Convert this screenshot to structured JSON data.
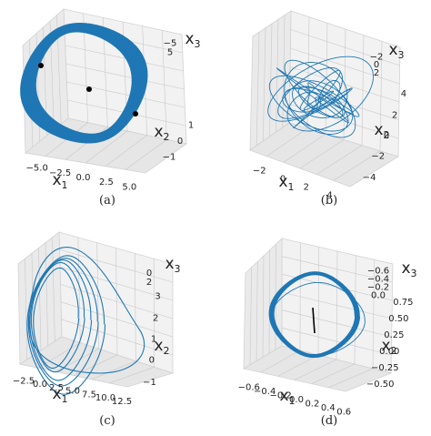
{
  "figure": {
    "panel_captions": [
      "(a)",
      "(b)",
      "(c)",
      "(d)"
    ]
  },
  "colors": {
    "trajectory": "#1f77b4",
    "pane": "#f2f2f2",
    "pane_edge": "#d2d2d2",
    "grid": "#c8c8c8",
    "point": "#000000"
  },
  "chart_data": [
    {
      "type": "scatter",
      "subtype": "3d-trajectory",
      "caption": "(a)",
      "axes": {
        "x1": {
          "label": "x",
          "subscript": "1",
          "ticks": [
            "−5.0",
            "−2.5",
            "0.0",
            "2.5",
            "5.0"
          ],
          "range": [
            -6,
            7
          ]
        },
        "x2": {
          "label": "x",
          "subscript": "2",
          "ticks": [
            "−1",
            "0",
            "1"
          ],
          "range": [
            -1.5,
            1.5
          ]
        },
        "x3": {
          "label": "x",
          "subscript": "3",
          "ticks": [
            "−5",
            "5"
          ],
          "range": [
            -6,
            6
          ]
        }
      },
      "series": [
        {
          "style": "line",
          "shape": "closed loop (thick limit cycle)"
        },
        {
          "style": "points",
          "count": 3
        }
      ],
      "grid": true
    },
    {
      "type": "scatter",
      "subtype": "3d-trajectory",
      "caption": "(b)",
      "axes": {
        "x1": {
          "label": "x",
          "subscript": "1",
          "ticks": [
            "−2",
            "0",
            "2",
            "4"
          ],
          "range": [
            -3,
            5
          ]
        },
        "x2": {
          "label": "x",
          "subscript": "2",
          "ticks": [
            "−4",
            "−2",
            "0",
            "2",
            "4"
          ],
          "range": [
            -5,
            5
          ]
        },
        "x3": {
          "label": "x",
          "subscript": "3",
          "ticks": [
            "−2",
            "0",
            "2"
          ],
          "range": [
            -3,
            3
          ]
        }
      },
      "series": [
        {
          "style": "line",
          "shape": "chaotic attractor"
        }
      ],
      "grid": true
    },
    {
      "type": "scatter",
      "subtype": "3d-trajectory",
      "caption": "(c)",
      "axes": {
        "x1": {
          "label": "x",
          "subscript": "1",
          "ticks": [
            "−2.5",
            "0.0",
            "2.5",
            "5.0",
            "7.5",
            "10.0",
            "12.5"
          ],
          "range": [
            -3,
            13
          ]
        },
        "x2": {
          "label": "x",
          "subscript": "2",
          "ticks": [
            "−1",
            "0",
            "1",
            "2",
            "3"
          ],
          "range": [
            -1.5,
            3.5
          ]
        },
        "x3": {
          "label": "x",
          "subscript": "3",
          "ticks": [
            "0",
            "2"
          ],
          "range": [
            -1,
            3
          ]
        }
      },
      "series": [
        {
          "style": "line",
          "shape": "nested loops"
        }
      ],
      "grid": true
    },
    {
      "type": "scatter",
      "subtype": "3d-trajectory",
      "caption": "(d)",
      "axes": {
        "x1": {
          "label": "x",
          "subscript": "1",
          "ticks": [
            "−0.6",
            "−0.4",
            "−0.2",
            "0.0",
            "0.2",
            "0.4",
            "0.6"
          ],
          "range": [
            -0.7,
            0.7
          ]
        },
        "x2": {
          "label": "x",
          "subscript": "2",
          "ticks": [
            "−0.50",
            "−0.25",
            "0.00",
            "0.25",
            "0.50",
            "0.75"
          ],
          "range": [
            -0.6,
            0.85
          ]
        },
        "x3": {
          "label": "x",
          "subscript": "3",
          "ticks": [
            "−0.6",
            "−0.4",
            "−0.2",
            "0.0"
          ],
          "range": [
            -0.7,
            0.1
          ]
        }
      },
      "series": [
        {
          "style": "line",
          "shape": "closed loop"
        },
        {
          "style": "segment",
          "color": "#000000"
        }
      ],
      "grid": true
    }
  ]
}
